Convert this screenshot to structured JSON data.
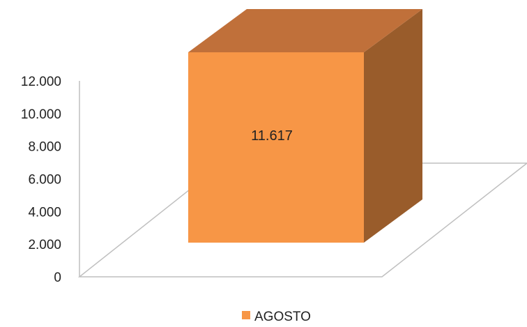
{
  "chart_data": {
    "type": "bar",
    "categories": [
      "AGOSTO"
    ],
    "series": [
      {
        "name": "AGOSTO",
        "values": [
          11617
        ]
      }
    ],
    "data_labels": [
      "11.617"
    ],
    "y_ticks": [
      "0",
      "2.000",
      "4.000",
      "6.000",
      "8.000",
      "10.000",
      "12.000"
    ],
    "ylim": [
      0,
      12000
    ],
    "grid": false,
    "three_d": true,
    "legend": {
      "position": "bottom",
      "entries": [
        "AGOSTO"
      ]
    },
    "colors": {
      "front": "#F79646",
      "top": "#C0703A",
      "side": "#995C2B",
      "floor_edge": "#BFBFBF",
      "wall_axis": "#BFBFBF"
    }
  }
}
